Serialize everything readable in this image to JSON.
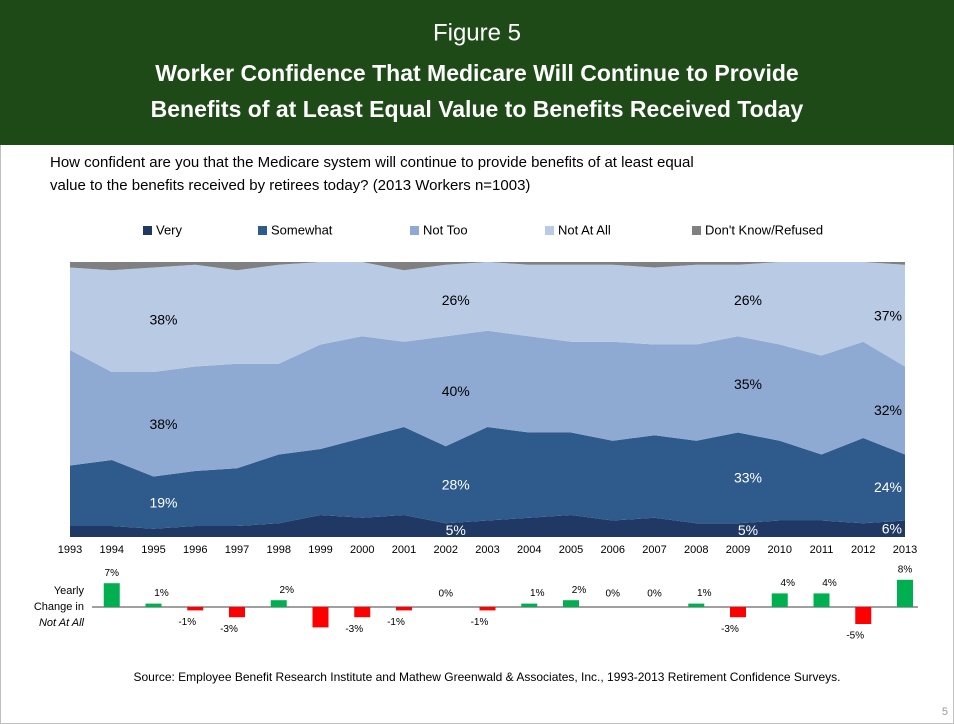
{
  "header": {
    "figure": "Figure 5",
    "title_lines": [
      "Worker Confidence That Medicare Will Continue to Provide",
      "Benefits of at Least Equal Value to Benefits Received Today"
    ]
  },
  "question_lines": [
    "How confident are you that the Medicare system will continue to provide benefits of at least equal",
    "value to the benefits received by retirees today? (2013 Workers n=1003)"
  ],
  "source": "Source:  Employee Benefit Research Institute and Mathew Greenwald & Associates, Inc., 1993-2013 Retirement Confidence Surveys.",
  "page_number": "5",
  "chart_data": [
    {
      "type": "stacked-area",
      "categories": [
        "1993",
        "1994",
        "1995",
        "1996",
        "1997",
        "1998",
        "1999",
        "2000",
        "2001",
        "2002",
        "2003",
        "2004",
        "2005",
        "2006",
        "2007",
        "2008",
        "2009",
        "2010",
        "2011",
        "2012",
        "2013"
      ],
      "ylim": [
        0,
        100
      ],
      "series": [
        {
          "name": "Very",
          "color": "#1f3864",
          "values": [
            4,
            4,
            3,
            4,
            4,
            5,
            8,
            7,
            8,
            5,
            6,
            7,
            8,
            6,
            7,
            5,
            5,
            6,
            6,
            5,
            6
          ],
          "value_labels": [
            null,
            null,
            null,
            null,
            null,
            null,
            null,
            null,
            null,
            "5%",
            null,
            null,
            null,
            null,
            null,
            null,
            "5%",
            null,
            null,
            null,
            "6%"
          ]
        },
        {
          "name": "Somewhat",
          "color": "#2f5a8c",
          "values": [
            22,
            24,
            19,
            20,
            21,
            25,
            24,
            29,
            32,
            28,
            34,
            31,
            30,
            29,
            30,
            30,
            33,
            29,
            24,
            31,
            24
          ],
          "value_labels": [
            null,
            null,
            "19%",
            null,
            null,
            null,
            null,
            null,
            null,
            "28%",
            null,
            null,
            null,
            null,
            null,
            null,
            "33%",
            null,
            null,
            null,
            "24%"
          ]
        },
        {
          "name": "Not Too",
          "color": "#8faad2",
          "values": [
            42,
            32,
            38,
            38,
            38,
            33,
            38,
            37,
            31,
            40,
            35,
            35,
            33,
            36,
            33,
            35,
            35,
            35,
            36,
            35,
            32
          ],
          "value_labels": [
            null,
            null,
            "38%",
            null,
            null,
            null,
            null,
            null,
            null,
            "40%",
            null,
            null,
            null,
            null,
            null,
            null,
            "35%",
            null,
            null,
            null,
            "32%"
          ]
        },
        {
          "name": "Not At All",
          "color": "#b9cbe4",
          "values": [
            30,
            37,
            38,
            37,
            34,
            36,
            30,
            27,
            26,
            26,
            25,
            26,
            28,
            28,
            28,
            29,
            26,
            30,
            34,
            29,
            37
          ],
          "value_labels": [
            null,
            null,
            "38%",
            null,
            null,
            null,
            null,
            null,
            null,
            "26%",
            null,
            null,
            null,
            null,
            null,
            null,
            "26%",
            null,
            null,
            null,
            "37%"
          ]
        },
        {
          "name": "Don't Know/Refused",
          "color": "#808080",
          "values": [
            2,
            3,
            2,
            1,
            3,
            1,
            0,
            0,
            3,
            1,
            0,
            1,
            1,
            1,
            2,
            1,
            1,
            0,
            0,
            0,
            1
          ]
        }
      ]
    },
    {
      "type": "bar",
      "label_lines": [
        "Yearly",
        "Change in",
        "Not At All"
      ],
      "ylim": [
        -10,
        10
      ],
      "positive_color": "#00b050",
      "negative_color": "#ff0000",
      "values": [
        null,
        7,
        1,
        -1,
        -3,
        2,
        -6,
        -3,
        -1,
        0,
        -1,
        1,
        2,
        0,
        0,
        1,
        -3,
        4,
        4,
        -5,
        8
      ],
      "value_labels": [
        null,
        "7%",
        "1%",
        "-1%",
        "-3%",
        "2%",
        null,
        "-3%",
        "-1%",
        "0%",
        "-1%",
        "1%",
        "2%",
        "0%",
        "0%",
        "1%",
        "-3%",
        "4%",
        "4%",
        "-5%",
        "8%"
      ]
    }
  ]
}
